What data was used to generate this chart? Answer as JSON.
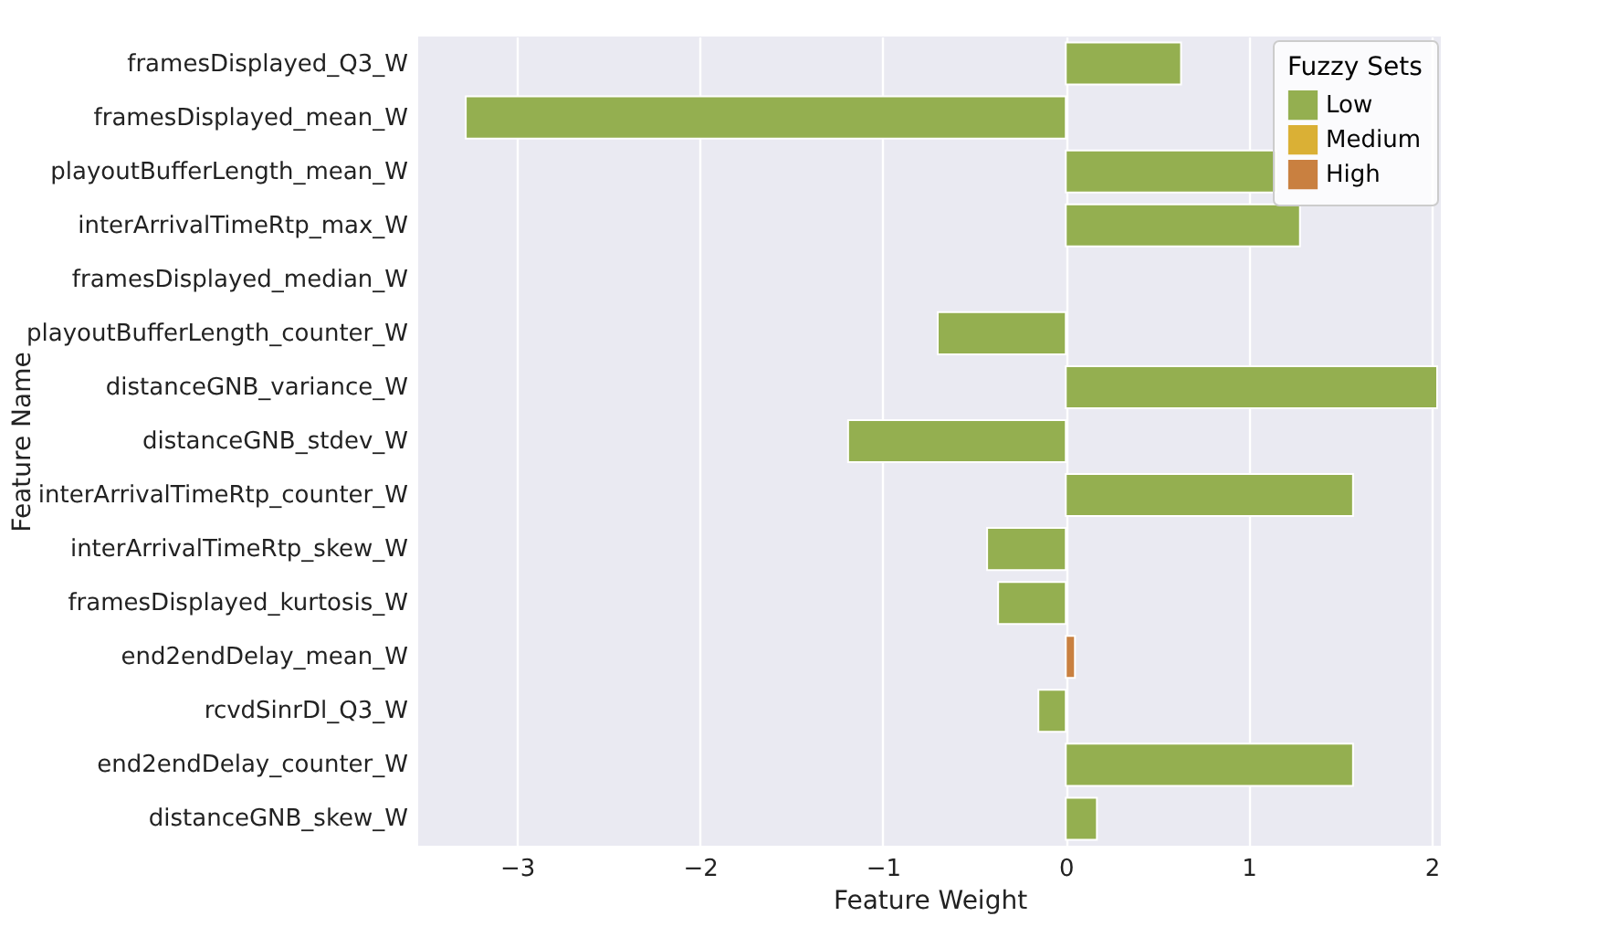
{
  "chart_data": {
    "type": "bar",
    "orientation": "horizontal",
    "xlabel": "Feature Weight",
    "ylabel": "Feature Name",
    "legend_title": "Fuzzy Sets",
    "legend": "top right",
    "grid": "x",
    "categories": [
      "framesDisplayed_Q3_W",
      "framesDisplayed_mean_W",
      "playoutBufferLength_mean_W",
      "interArrivalTimeRtp_max_W",
      "framesDisplayed_median_W",
      "playoutBufferLength_counter_W",
      "distanceGNB_variance_W",
      "distanceGNB_stdev_W",
      "interArrivalTimeRtp_counter_W",
      "interArrivalTimeRtp_skew_W",
      "framesDisplayed_kurtosis_W",
      "end2endDelay_mean_W",
      "rcvdSinrDl_Q3_W",
      "end2endDelay_counter_W",
      "distanceGNB_skew_W"
    ],
    "series": [
      {
        "name": "Low",
        "color": "#94af50",
        "values": [
          0.63,
          -3.28,
          1.15,
          1.28,
          null,
          -0.7,
          2.03,
          -1.19,
          1.57,
          -0.43,
          -0.37,
          null,
          -0.15,
          1.57,
          0.17
        ]
      },
      {
        "name": "Medium",
        "color": "#dab035",
        "values": [
          null,
          null,
          null,
          null,
          null,
          null,
          null,
          null,
          null,
          null,
          null,
          null,
          null,
          null,
          null
        ]
      },
      {
        "name": "High",
        "color": "#c98040",
        "values": [
          null,
          null,
          null,
          null,
          null,
          null,
          null,
          null,
          null,
          null,
          null,
          0.05,
          null,
          null,
          null
        ]
      }
    ],
    "xlim": [
      -3.54,
      2.05
    ],
    "xticks": [
      {
        "value": -3,
        "label": "−3"
      },
      {
        "value": -2,
        "label": "−2"
      },
      {
        "value": -1,
        "label": "−1"
      },
      0,
      1,
      2
    ]
  }
}
